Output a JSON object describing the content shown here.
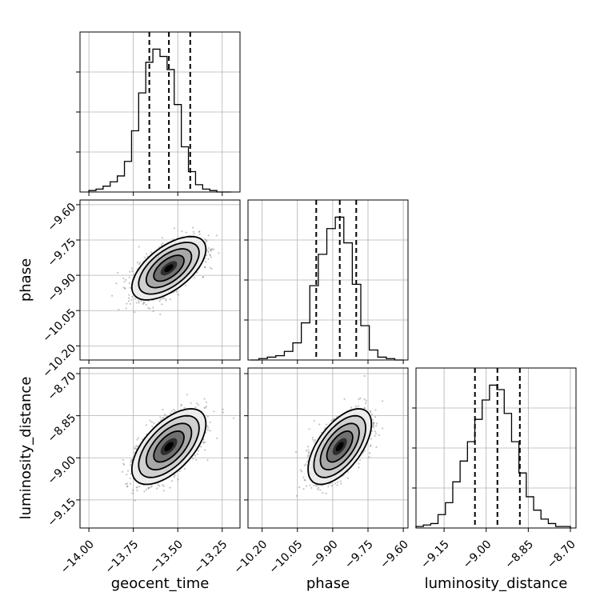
{
  "chart_data": {
    "type": "corner",
    "parameters": [
      "geocent_time",
      "phase",
      "luminosity_distance"
    ],
    "ranges": {
      "geocent_time": [
        -14.05,
        -13.15
      ],
      "phase": [
        -10.26,
        -9.58
      ],
      "luminosity_distance": [
        -9.25,
        -8.68
      ]
    },
    "ticks": {
      "geocent_time": [
        -14.0,
        -13.75,
        -13.5,
        -13.25
      ],
      "phase": [
        -10.2,
        -10.05,
        -9.9,
        -9.75,
        -9.6
      ],
      "luminosity_distance": [
        -9.15,
        -9.0,
        -8.85,
        -8.7
      ]
    },
    "tick_labels": {
      "geocent_time": [
        "−14.00",
        "−13.75",
        "−13.50",
        "−13.25"
      ],
      "phase": [
        "−10.20",
        "−10.05",
        "−9.90",
        "−9.75",
        "−9.60"
      ],
      "luminosity_distance": [
        "−9.15",
        "−9.00",
        "−8.85",
        "−8.70"
      ]
    },
    "quantiles": {
      "geocent_time": [
        -13.66,
        -13.55,
        -13.43
      ],
      "phase": [
        -9.97,
        -9.87,
        -9.8
      ],
      "luminosity_distance": [
        -9.04,
        -8.96,
        -8.88
      ]
    },
    "histograms": {
      "geocent_time": {
        "edges_range": [
          -14.0,
          -13.2
        ],
        "counts": [
          1,
          2,
          4,
          7,
          11,
          21,
          42,
          68,
          89,
          98,
          93,
          84,
          60,
          31,
          14,
          5,
          2,
          1,
          0,
          0
        ]
      },
      "phase": {
        "edges_range": [
          -10.25,
          -9.6
        ],
        "counts": [
          0,
          1,
          2,
          3,
          6,
          12,
          26,
          52,
          74,
          92,
          100,
          82,
          53,
          24,
          7,
          2,
          1,
          0
        ]
      },
      "luminosity_distance": {
        "edges_range": [
          -9.25,
          -8.7
        ],
        "counts": [
          1,
          2,
          3,
          9,
          17,
          31,
          45,
          58,
          73,
          86,
          96,
          93,
          77,
          58,
          37,
          21,
          12,
          6,
          3,
          1,
          1
        ]
      }
    },
    "correlations": {
      "phase_vs_geocent_time": 0.6,
      "luminosity_distance_vs_geocent_time": 0.6,
      "luminosity_distance_vs_phase": 0.6
    },
    "std": {
      "geocent_time": 0.085,
      "phase": 0.055,
      "luminosity_distance": 0.055
    },
    "medians": {
      "geocent_time": -13.55,
      "phase": -9.87,
      "luminosity_distance": -8.96
    },
    "grid": true
  }
}
